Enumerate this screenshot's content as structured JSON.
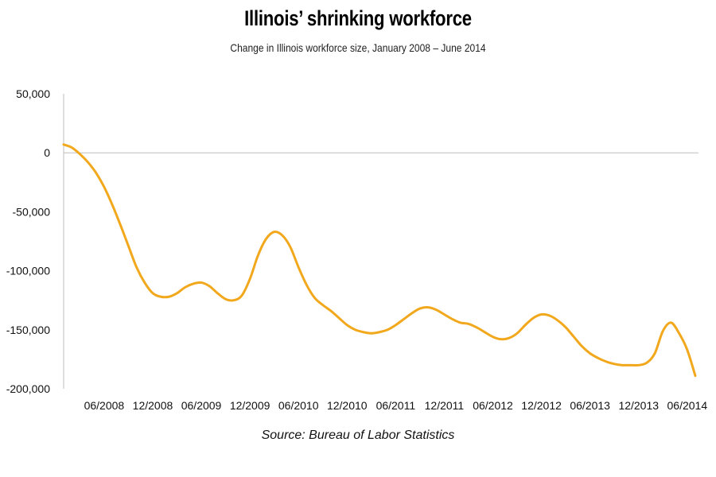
{
  "chart_data": {
    "type": "line",
    "title": "Illinois’ shrinking workforce",
    "subtitle": "Change in Illinois workforce size, January 2008 – June 2014",
    "source": "Source: Bureau of Labor Statistics",
    "line_color": "#F2A81D",
    "ylim": [
      -200000,
      50000
    ],
    "yticks": [
      50000,
      0,
      -50000,
      -100000,
      -150000,
      -200000
    ],
    "ytick_labels": [
      "50,000",
      "0",
      "-50,000",
      "-100,000",
      "-150,000",
      "-200,000"
    ],
    "xtick_labels": [
      "06/2008",
      "12/2008",
      "06/2009",
      "12/2009",
      "06/2010",
      "12/2010",
      "06/2011",
      "12/2011",
      "06/2012",
      "12/2012",
      "06/2013",
      "12/2013",
      "06/2014"
    ],
    "xtick_values": [
      "2008-06",
      "2008-12",
      "2009-06",
      "2009-12",
      "2010-06",
      "2010-12",
      "2011-06",
      "2011-12",
      "2012-06",
      "2012-12",
      "2013-06",
      "2013-12",
      "2014-06"
    ],
    "series": [
      {
        "x": [
          "2008-01",
          "2008-02",
          "2008-03",
          "2008-04",
          "2008-05",
          "2008-06",
          "2008-07",
          "2008-08",
          "2008-09",
          "2008-10",
          "2008-11",
          "2008-12",
          "2009-01",
          "2009-02",
          "2009-03",
          "2009-04",
          "2009-05",
          "2009-06",
          "2009-07",
          "2009-08",
          "2009-09",
          "2009-10",
          "2009-11",
          "2009-12",
          "2010-01",
          "2010-02",
          "2010-03",
          "2010-04",
          "2010-05",
          "2010-06",
          "2010-07",
          "2010-08",
          "2010-09",
          "2010-10",
          "2010-11",
          "2010-12",
          "2011-01",
          "2011-02",
          "2011-03",
          "2011-04",
          "2011-05",
          "2011-06",
          "2011-07",
          "2011-08",
          "2011-09",
          "2011-10",
          "2011-11",
          "2011-12",
          "2012-01",
          "2012-02",
          "2012-03",
          "2012-04",
          "2012-05",
          "2012-06",
          "2012-07",
          "2012-08",
          "2012-09",
          "2012-10",
          "2012-11",
          "2012-12",
          "2013-01",
          "2013-02",
          "2013-03",
          "2013-04",
          "2013-05",
          "2013-06",
          "2013-07",
          "2013-08",
          "2013-09",
          "2013-10",
          "2013-11",
          "2013-12",
          "2014-01",
          "2014-02",
          "2014-03",
          "2014-04",
          "2014-05",
          "2014-06",
          "2014-07"
        ],
        "values": [
          7000,
          4500,
          -1000,
          -8000,
          -17000,
          -29000,
          -44000,
          -61000,
          -79000,
          -97000,
          -110000,
          -119000,
          -122000,
          -122000,
          -119000,
          -114000,
          -111000,
          -110000,
          -113000,
          -119000,
          -124000,
          -125000,
          -121000,
          -107000,
          -87000,
          -73000,
          -67000,
          -70000,
          -80000,
          -97000,
          -112000,
          -123000,
          -129000,
          -134000,
          -140000,
          -146000,
          -150000,
          -152000,
          -153000,
          -152000,
          -150000,
          -146000,
          -141000,
          -136000,
          -132000,
          -131000,
          -133000,
          -137000,
          -141000,
          -144000,
          -145000,
          -148000,
          -152000,
          -156000,
          -158000,
          -157000,
          -153000,
          -146000,
          -140000,
          -137000,
          -138000,
          -142000,
          -148000,
          -156000,
          -164000,
          -170000,
          -174000,
          -177000,
          -179000,
          -180000,
          -180000,
          -180000,
          -178000,
          -170000,
          -151000,
          -144000,
          -153000,
          -167000,
          -189000
        ]
      }
    ]
  }
}
